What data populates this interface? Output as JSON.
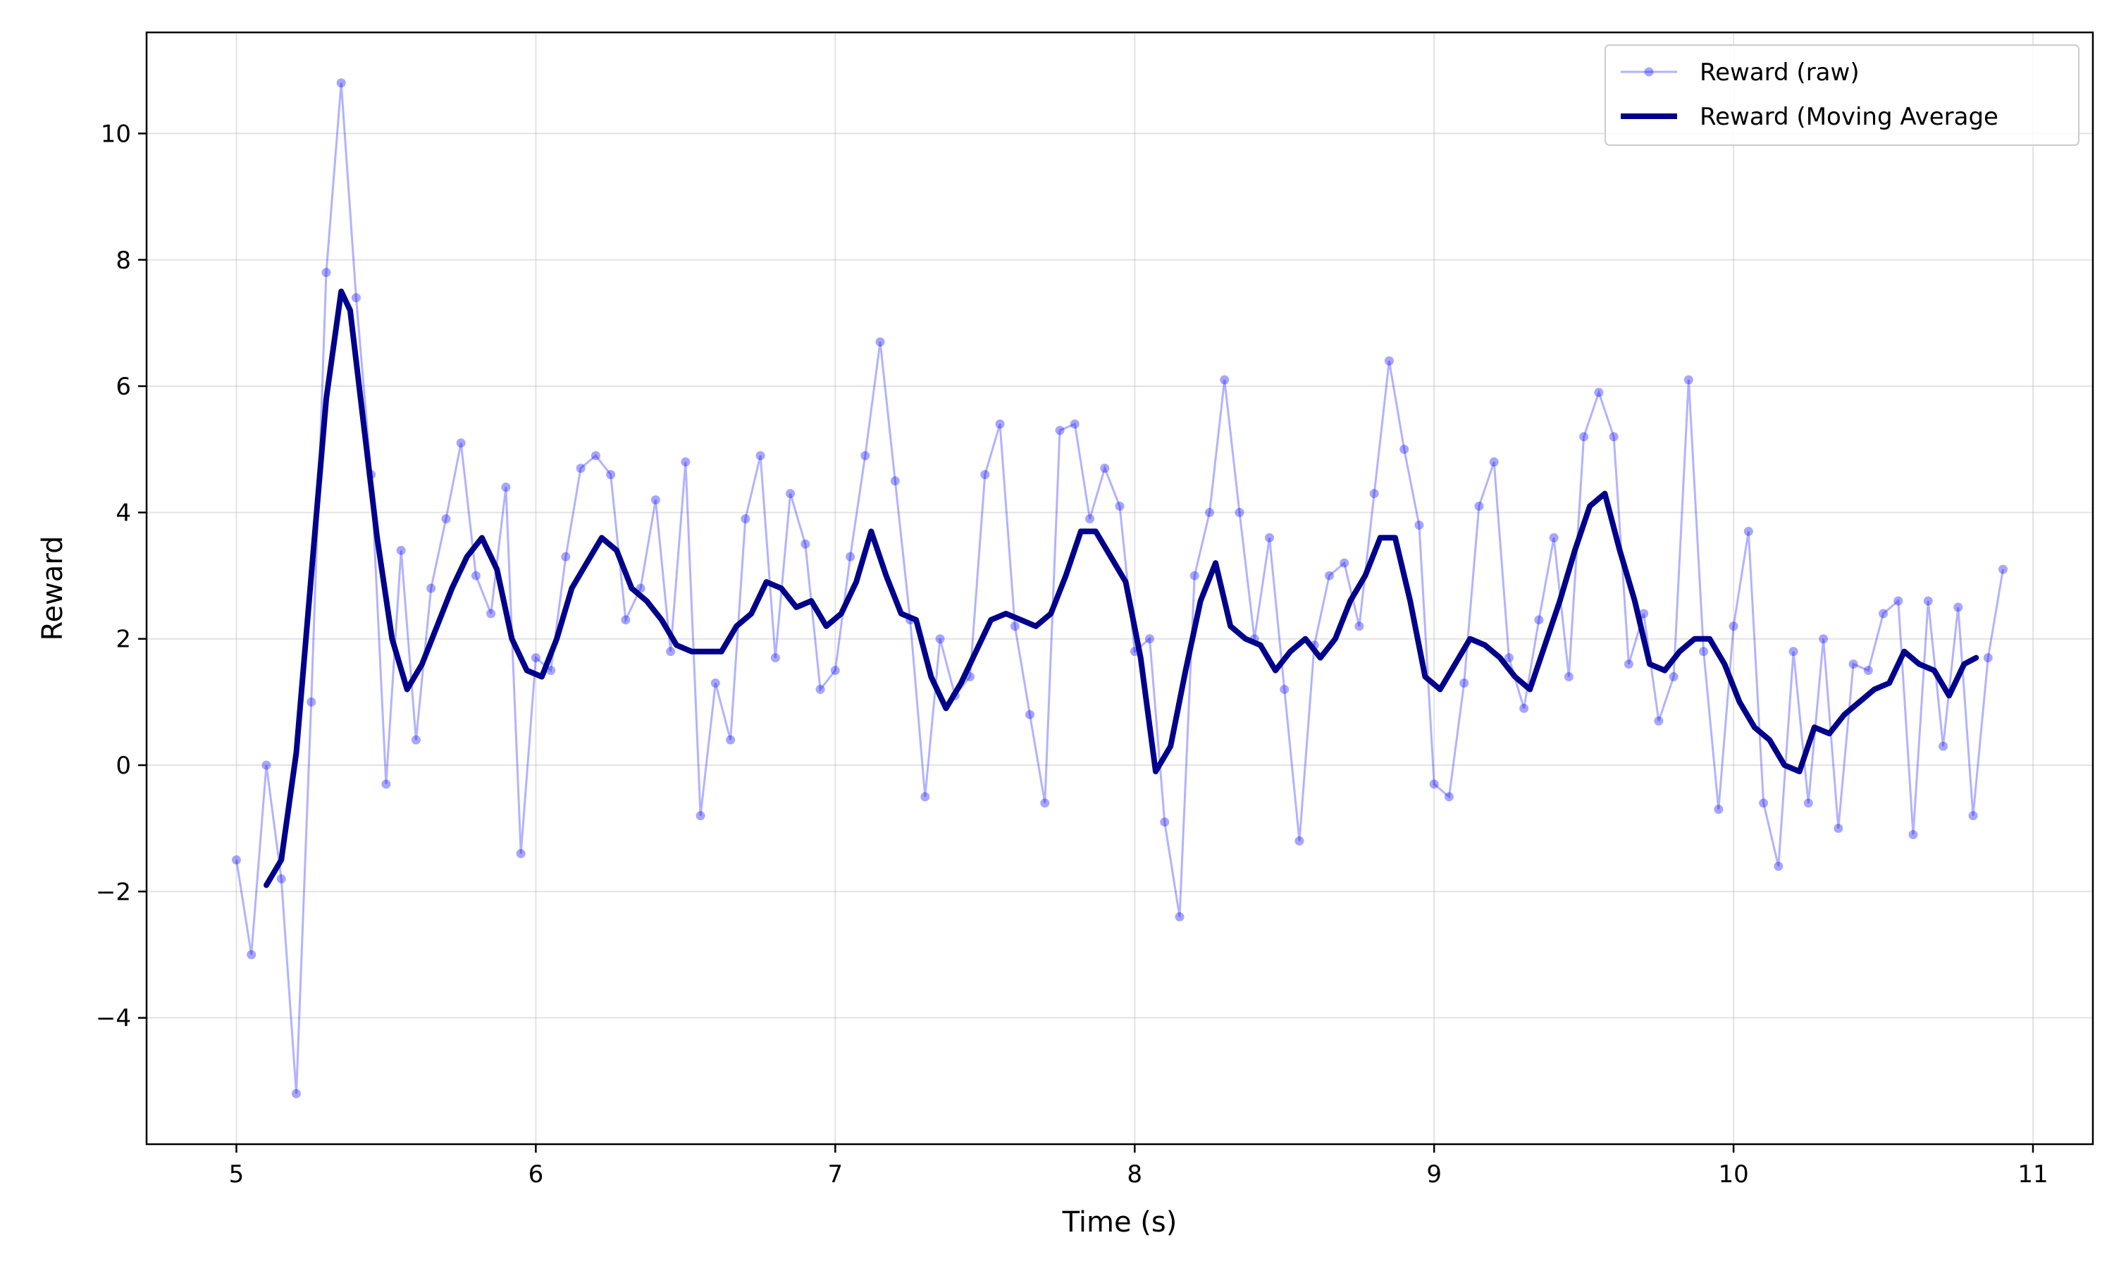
{
  "chart_data": {
    "type": "line",
    "title": "",
    "xlabel": "Time (s)",
    "ylabel": "Reward",
    "xlim": [
      4.7,
      11.2
    ],
    "ylim": [
      -6.0,
      11.6
    ],
    "xticks": [
      5,
      6,
      7,
      8,
      9,
      10,
      11
    ],
    "yticks": [
      -4,
      -2,
      0,
      2,
      4,
      6,
      8,
      10
    ],
    "xtick_labels": [
      "5",
      "6",
      "7",
      "8",
      "9",
      "10",
      "11"
    ],
    "ytick_labels": [
      "−4",
      "−2",
      "0",
      "2",
      "4",
      "6",
      "8",
      "10"
    ],
    "grid": true,
    "legend_position": "top-right",
    "series": [
      {
        "name": "Reward (raw)",
        "color": "#0000ff",
        "style": "line-with-markers",
        "opacity": 0.3,
        "x": [
          5.0,
          5.05,
          5.1,
          5.15,
          5.2,
          5.25,
          5.3,
          5.35,
          5.4,
          5.45,
          5.5,
          5.55,
          5.6,
          5.65,
          5.7,
          5.75,
          5.8,
          5.85,
          5.9,
          5.95,
          6.0,
          6.05,
          6.1,
          6.15,
          6.2,
          6.25,
          6.3,
          6.35,
          6.4,
          6.45,
          6.5,
          6.55,
          6.6,
          6.65,
          6.7,
          6.75,
          6.8,
          6.85,
          6.9,
          6.95,
          7.0,
          7.05,
          7.1,
          7.15,
          7.2,
          7.25,
          7.3,
          7.35,
          7.4,
          7.45,
          7.5,
          7.55,
          7.6,
          7.65,
          7.7,
          7.75,
          7.8,
          7.85,
          7.9,
          7.95,
          8.0,
          8.05,
          8.1,
          8.15,
          8.2,
          8.25,
          8.3,
          8.35,
          8.4,
          8.45,
          8.5,
          8.55,
          8.6,
          8.65,
          8.7,
          8.75,
          8.8,
          8.85,
          8.9,
          8.95,
          9.0,
          9.05,
          9.1,
          9.15,
          9.2,
          9.25,
          9.3,
          9.35,
          9.4,
          9.45,
          9.5,
          9.55,
          9.6,
          9.65,
          9.7,
          9.75,
          9.8,
          9.85,
          9.9,
          9.95,
          10.0,
          10.05,
          10.1,
          10.15,
          10.2,
          10.25,
          10.3,
          10.35,
          10.4,
          10.45,
          10.5,
          10.55,
          10.6,
          10.65,
          10.7,
          10.75,
          10.8,
          10.85,
          10.9
        ],
        "y": [
          -1.5,
          -3.0,
          0.0,
          -1.8,
          -5.2,
          1.0,
          7.8,
          10.8,
          7.4,
          4.6,
          -0.3,
          3.4,
          0.4,
          2.8,
          3.9,
          5.1,
          3.0,
          2.4,
          4.4,
          -1.4,
          1.7,
          1.5,
          3.3,
          4.7,
          4.9,
          4.6,
          2.3,
          2.8,
          4.2,
          1.8,
          4.8,
          -0.8,
          1.3,
          0.4,
          3.9,
          4.9,
          1.7,
          4.3,
          3.5,
          1.2,
          1.5,
          3.3,
          4.9,
          6.7,
          4.5,
          2.3,
          -0.5,
          2.0,
          1.1,
          1.4,
          4.6,
          5.4,
          2.2,
          0.8,
          -0.6,
          5.3,
          5.4,
          3.9,
          4.7,
          4.1,
          1.8,
          2.0,
          -0.9,
          -2.4,
          3.0,
          4.0,
          6.1,
          4.0,
          2.0,
          3.6,
          1.2,
          -1.2,
          1.9,
          3.0,
          3.2,
          2.2,
          4.3,
          6.4,
          5.0,
          3.8,
          -0.3,
          -0.5,
          1.3,
          4.1,
          4.8,
          1.7,
          0.9,
          2.3,
          3.6,
          1.4,
          5.2,
          5.9,
          5.2,
          1.6,
          2.4,
          0.7,
          1.4,
          6.1,
          1.8,
          -0.7,
          2.2,
          3.7,
          -0.6,
          -1.6,
          1.8,
          -0.6,
          2.0,
          -1.0,
          1.6,
          1.5,
          2.4,
          2.6,
          -1.1,
          2.6,
          0.3,
          2.5,
          -0.8,
          1.7,
          3.1
        ]
      },
      {
        "name": "Reward (Moving Average",
        "color": "#00008b",
        "style": "line",
        "x": [
          5.1,
          5.15,
          5.2,
          5.25,
          5.3,
          5.35,
          5.38,
          5.42,
          5.47,
          5.52,
          5.57,
          5.62,
          5.67,
          5.72,
          5.77,
          5.82,
          5.87,
          5.92,
          5.97,
          6.02,
          6.07,
          6.12,
          6.17,
          6.22,
          6.27,
          6.32,
          6.37,
          6.42,
          6.47,
          6.52,
          6.57,
          6.62,
          6.67,
          6.72,
          6.77,
          6.82,
          6.87,
          6.92,
          6.97,
          7.02,
          7.07,
          7.12,
          7.17,
          7.22,
          7.27,
          7.32,
          7.37,
          7.42,
          7.47,
          7.52,
          7.57,
          7.62,
          7.67,
          7.72,
          7.77,
          7.82,
          7.87,
          7.92,
          7.97,
          8.02,
          8.07,
          8.12,
          8.17,
          8.22,
          8.27,
          8.32,
          8.37,
          8.42,
          8.47,
          8.52,
          8.57,
          8.62,
          8.67,
          8.72,
          8.77,
          8.82,
          8.87,
          8.92,
          8.97,
          9.02,
          9.07,
          9.12,
          9.17,
          9.22,
          9.27,
          9.32,
          9.37,
          9.42,
          9.47,
          9.52,
          9.57,
          9.62,
          9.67,
          9.72,
          9.77,
          9.82,
          9.87,
          9.92,
          9.97,
          10.02,
          10.07,
          10.12,
          10.17,
          10.22,
          10.27,
          10.32,
          10.37,
          10.42,
          10.47,
          10.52,
          10.57,
          10.62,
          10.67,
          10.72,
          10.77,
          10.81
        ],
        "y": [
          -1.9,
          -1.5,
          0.2,
          3.0,
          5.8,
          7.5,
          7.2,
          5.6,
          3.6,
          2.0,
          1.2,
          1.6,
          2.2,
          2.8,
          3.3,
          3.6,
          3.1,
          2.0,
          1.5,
          1.4,
          2.0,
          2.8,
          3.2,
          3.6,
          3.4,
          2.8,
          2.6,
          2.3,
          1.9,
          1.8,
          1.8,
          1.8,
          2.2,
          2.4,
          2.9,
          2.8,
          2.5,
          2.6,
          2.2,
          2.4,
          2.9,
          3.7,
          3.0,
          2.4,
          2.3,
          1.4,
          0.9,
          1.3,
          1.8,
          2.3,
          2.4,
          2.3,
          2.2,
          2.4,
          3.0,
          3.7,
          3.7,
          3.3,
          2.9,
          1.7,
          -0.1,
          0.3,
          1.5,
          2.6,
          3.2,
          2.2,
          2.0,
          1.9,
          1.5,
          1.8,
          2.0,
          1.7,
          2.0,
          2.6,
          3.0,
          3.6,
          3.6,
          2.6,
          1.4,
          1.2,
          1.6,
          2.0,
          1.9,
          1.7,
          1.4,
          1.2,
          1.9,
          2.6,
          3.4,
          4.1,
          4.3,
          3.4,
          2.6,
          1.6,
          1.5,
          1.8,
          2.0,
          2.0,
          1.6,
          1.0,
          0.6,
          0.4,
          0.0,
          -0.1,
          0.6,
          0.5,
          0.8,
          1.0,
          1.2,
          1.3,
          1.8,
          1.6,
          1.5,
          1.1,
          1.6,
          1.7
        ]
      }
    ]
  }
}
